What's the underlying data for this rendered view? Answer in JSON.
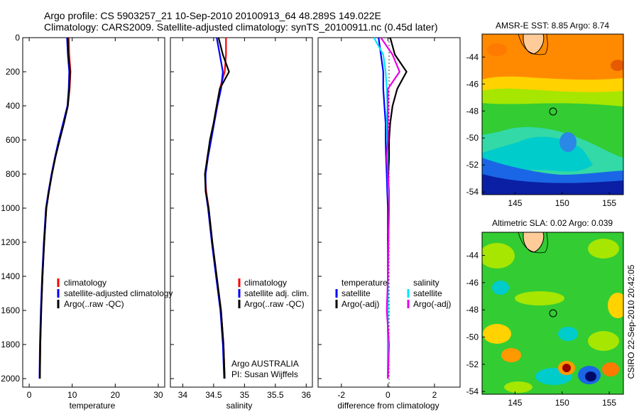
{
  "header": {
    "line1": "Argo profile: CS 5903257_21 10-Sep-2010 20100913_64 48.289S 149.022E",
    "line2": "Climatology: CARS2009. Satellite-adjusted climatology: synTS_20100911.nc (0.45d later)"
  },
  "annotation": {
    "org": "Argo AUSTRALIA",
    "pi": "PI: Susan Wijffels"
  },
  "footer": {
    "credit": "CSIRO 22-Sep-2010 20:42:05"
  },
  "colors": {
    "climatology": "#ff0000",
    "satellite": "#0000ff",
    "argo": "#000000",
    "sal_satellite": "#00e5ff",
    "sal_argo": "#e600e6"
  },
  "chart_data": [
    {
      "type": "line",
      "xlabel": "temperature",
      "ylabel": "",
      "xlim": [
        -1.5,
        31.5
      ],
      "ylim": [
        2050,
        0
      ],
      "xticks": [
        0,
        10,
        20,
        30
      ],
      "yticks": [
        0,
        200,
        400,
        600,
        800,
        1000,
        1200,
        1400,
        1600,
        1800,
        2000
      ],
      "legend": [
        "climatology",
        "satellite-adjusted climatology",
        "Argo(..raw -QC)"
      ],
      "series": [
        {
          "name": "climatology",
          "color": "#ff0000",
          "x": [
            9.2,
            9.3,
            9.6,
            9.4,
            9.0,
            8.0,
            7.0,
            6.1,
            5.3,
            4.6,
            4.0,
            3.5,
            3.1,
            2.8,
            2.6,
            2.5
          ],
          "y": [
            0,
            100,
            200,
            300,
            400,
            500,
            600,
            700,
            800,
            900,
            1000,
            1200,
            1400,
            1600,
            1800,
            2000
          ]
        },
        {
          "name": "satellite-adjusted climatology",
          "color": "#0000ff",
          "x": [
            8.8,
            9.0,
            9.3,
            9.2,
            8.9,
            7.9,
            6.9,
            6.0,
            5.2,
            4.5,
            3.9,
            3.4,
            3.0,
            2.7,
            2.5,
            2.4
          ],
          "y": [
            0,
            100,
            200,
            300,
            400,
            500,
            600,
            700,
            800,
            900,
            1000,
            1200,
            1400,
            1600,
            1800,
            2000
          ]
        },
        {
          "name": "Argo(..raw -QC)",
          "color": "#000000",
          "x": [
            9.0,
            9.1,
            9.5,
            9.3,
            9.0,
            8.1,
            7.1,
            6.1,
            5.3,
            4.6,
            4.0,
            3.5,
            3.1,
            2.8,
            2.6,
            2.5
          ],
          "y": [
            0,
            100,
            200,
            300,
            400,
            500,
            600,
            700,
            800,
            900,
            1000,
            1200,
            1400,
            1600,
            1800,
            2000
          ]
        }
      ]
    },
    {
      "type": "line",
      "xlabel": "salinity",
      "ylabel": "",
      "xlim": [
        33.8,
        36.1
      ],
      "ylim": [
        2050,
        0
      ],
      "xticks": [
        34,
        34.5,
        35,
        35.5,
        36
      ],
      "xtick_labels": [
        "34",
        "34.5",
        "35",
        "35.5",
        "36"
      ],
      "legend": [
        "climatology",
        "satellite adj. clim.",
        "Argo(..raw -QC)"
      ],
      "series": [
        {
          "name": "climatology",
          "color": "#ff0000",
          "x": [
            34.7,
            34.7,
            34.68,
            34.6,
            34.55,
            34.5,
            34.45,
            34.4,
            34.36,
            34.38,
            34.42,
            34.48,
            34.55,
            34.62,
            34.66,
            34.68
          ],
          "y": [
            0,
            100,
            200,
            300,
            400,
            500,
            600,
            700,
            800,
            900,
            1000,
            1200,
            1400,
            1600,
            1800,
            2000
          ]
        },
        {
          "name": "satellite adj. clim.",
          "color": "#0000ff",
          "x": [
            34.55,
            34.6,
            34.65,
            34.62,
            34.56,
            34.51,
            34.46,
            34.41,
            34.37,
            34.37,
            34.41,
            34.47,
            34.54,
            34.61,
            34.65,
            34.67
          ],
          "y": [
            0,
            100,
            200,
            300,
            400,
            500,
            600,
            700,
            800,
            900,
            1000,
            1200,
            1400,
            1600,
            1800,
            2000
          ]
        },
        {
          "name": "Argo(..raw -QC)",
          "color": "#000000",
          "x": [
            34.58,
            34.65,
            34.75,
            34.6,
            34.55,
            34.5,
            34.44,
            34.4,
            34.36,
            34.37,
            34.42,
            34.48,
            34.55,
            34.62,
            34.66,
            34.68
          ],
          "y": [
            0,
            100,
            200,
            300,
            400,
            500,
            600,
            700,
            800,
            900,
            1000,
            1200,
            1400,
            1600,
            1800,
            2000
          ]
        }
      ]
    },
    {
      "type": "line",
      "xlabel": "difference from climatology",
      "ylabel": "",
      "xlim": [
        -3.0,
        3.1
      ],
      "ylim": [
        2050,
        0
      ],
      "xticks": [
        -2,
        0,
        2
      ],
      "legend": [
        "temperature",
        "satellite",
        "Argo(-adj)",
        "salinity",
        "satellite",
        "Argo(-adj)"
      ],
      "series": [
        {
          "name": "satellite",
          "group": "temperature",
          "color": "#0000ff",
          "x": [
            -0.4,
            -0.3,
            -0.2,
            -0.2,
            -0.15,
            -0.1,
            -0.1,
            -0.08,
            -0.05,
            -0.03,
            0,
            0,
            0,
            0,
            0,
            0
          ],
          "y": [
            0,
            100,
            200,
            300,
            400,
            500,
            600,
            700,
            800,
            900,
            1000,
            1200,
            1400,
            1600,
            1800,
            2000
          ]
        },
        {
          "name": "Argo(-adj)",
          "group": "temperature",
          "color": "#000000",
          "x": [
            0.1,
            0.3,
            0.8,
            0.4,
            0.2,
            0.1,
            0.05,
            0.05,
            0.02,
            0.02,
            0.01,
            0,
            0,
            0,
            0,
            0
          ],
          "y": [
            0,
            100,
            200,
            300,
            400,
            500,
            600,
            700,
            800,
            900,
            1000,
            1200,
            1400,
            1600,
            1800,
            2000
          ]
        },
        {
          "name": "satellite",
          "group": "salinity",
          "color": "#00e5ff",
          "x": [
            -0.6,
            -0.2,
            -0.1,
            -0.05,
            -0.02,
            -0.05,
            -0.03,
            -0.02,
            0,
            0.02,
            0.05,
            0.02,
            0,
            0,
            0,
            0
          ],
          "y": [
            0,
            100,
            200,
            300,
            400,
            500,
            600,
            700,
            800,
            900,
            1000,
            1200,
            1400,
            1600,
            1800,
            2000
          ]
        },
        {
          "name": "Argo(-adj)",
          "group": "salinity",
          "color": "#e600e6",
          "x": [
            -0.3,
            0.2,
            0.5,
            0.0,
            0.0,
            0.0,
            0.0,
            -0.05,
            0.0,
            0.05,
            0.05,
            0.02,
            0.0,
            -0.05,
            0.05,
            0.0
          ],
          "y": [
            0,
            100,
            200,
            300,
            400,
            500,
            600,
            700,
            800,
            900,
            1000,
            1200,
            1400,
            1600,
            1800,
            2000
          ]
        }
      ]
    },
    {
      "type": "heatmap",
      "title": "AMSR-E SST: 8.85 Argo: 8.74",
      "xlim": [
        141.5,
        156.5
      ],
      "ylim": [
        -54.2,
        -42.3
      ],
      "xticks": [
        145,
        150,
        155
      ],
      "yticks": [
        -44,
        -46,
        -48,
        -50,
        -52,
        -54
      ],
      "marker": {
        "lon": 149.022,
        "lat": -48.289
      }
    },
    {
      "type": "heatmap",
      "title": "Altimetric SLA: 0.02 Argo: 0.039",
      "xlim": [
        141.5,
        156.5
      ],
      "ylim": [
        -54.2,
        -42.3
      ],
      "xticks": [
        145,
        150,
        155
      ],
      "yticks": [
        -44,
        -46,
        -48,
        -50,
        -52,
        -54
      ],
      "marker": {
        "lon": 149.022,
        "lat": -48.289
      }
    }
  ]
}
